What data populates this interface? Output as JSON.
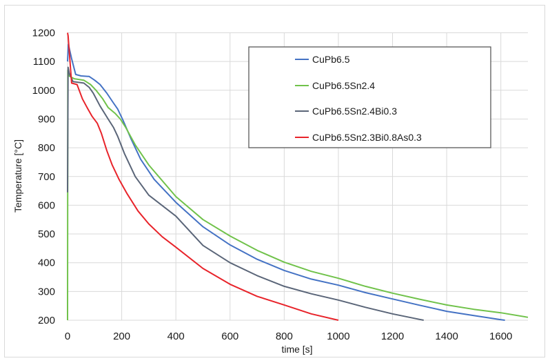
{
  "chart_data": {
    "type": "line",
    "title": "",
    "xlabel": "time [s]",
    "ylabel": "Temperature [°C]",
    "xlim": [
      0,
      1700
    ],
    "ylim": [
      200,
      1200
    ],
    "xticks": [
      0,
      200,
      400,
      600,
      800,
      1000,
      1200,
      1400,
      1600
    ],
    "yticks": [
      200,
      300,
      400,
      500,
      600,
      700,
      800,
      900,
      1000,
      1100,
      1200
    ],
    "grid": true,
    "legend_position": "upper right (inside plot)",
    "series": [
      {
        "name": "CuPb6.5",
        "color": "#4472c4",
        "x": [
          0,
          3,
          15,
          30,
          50,
          80,
          100,
          120,
          145,
          170,
          185,
          205,
          235,
          270,
          320,
          400,
          500,
          600,
          700,
          800,
          900,
          1000,
          1100,
          1200,
          1300,
          1400,
          1500,
          1600,
          1615
        ],
        "y": [
          1100,
          1160,
          1110,
          1055,
          1050,
          1048,
          1035,
          1020,
          990,
          955,
          935,
          895,
          830,
          760,
          690,
          610,
          525,
          462,
          412,
          373,
          343,
          322,
          296,
          274,
          252,
          231,
          216,
          202,
          200
        ]
      },
      {
        "name": "CuPb6.5Sn2.4",
        "color": "#70c24a",
        "x": [
          0,
          1,
          5,
          25,
          60,
          85,
          105,
          130,
          150,
          175,
          195,
          215,
          250,
          300,
          400,
          500,
          600,
          700,
          800,
          900,
          1000,
          1100,
          1200,
          1300,
          1400,
          1500,
          1600,
          1700
        ],
        "y": [
          200,
          1070,
          1050,
          1040,
          1035,
          1020,
          1000,
          970,
          940,
          920,
          900,
          870,
          810,
          740,
          630,
          550,
          493,
          443,
          402,
          370,
          346,
          318,
          294,
          273,
          253,
          238,
          226,
          210
        ]
      },
      {
        "name": "CuPb6.5Sn2.4Bi0.3",
        "color": "#5a6578",
        "x": [
          0,
          2,
          6,
          20,
          60,
          80,
          95,
          120,
          150,
          170,
          185,
          210,
          250,
          300,
          400,
          500,
          600,
          700,
          800,
          900,
          1000,
          1100,
          1200,
          1300,
          1315
        ],
        "y": [
          645,
          1080,
          1060,
          1030,
          1025,
          1010,
          990,
          945,
          900,
          870,
          840,
          780,
          700,
          635,
          562,
          460,
          400,
          355,
          318,
          292,
          270,
          245,
          222,
          203,
          200
        ]
      },
      {
        "name": "CuPb6.5Sn2.3Bi0.8As0.3",
        "color": "#e8232a",
        "x": [
          0,
          2,
          15,
          35,
          55,
          75,
          90,
          110,
          125,
          145,
          165,
          190,
          220,
          260,
          300,
          350,
          400,
          500,
          600,
          700,
          800,
          900,
          1000
        ],
        "y": [
          1200,
          1190,
          1025,
          1020,
          970,
          935,
          910,
          885,
          850,
          790,
          740,
          690,
          640,
          580,
          535,
          490,
          454,
          380,
          325,
          283,
          253,
          222,
          200
        ]
      }
    ]
  }
}
